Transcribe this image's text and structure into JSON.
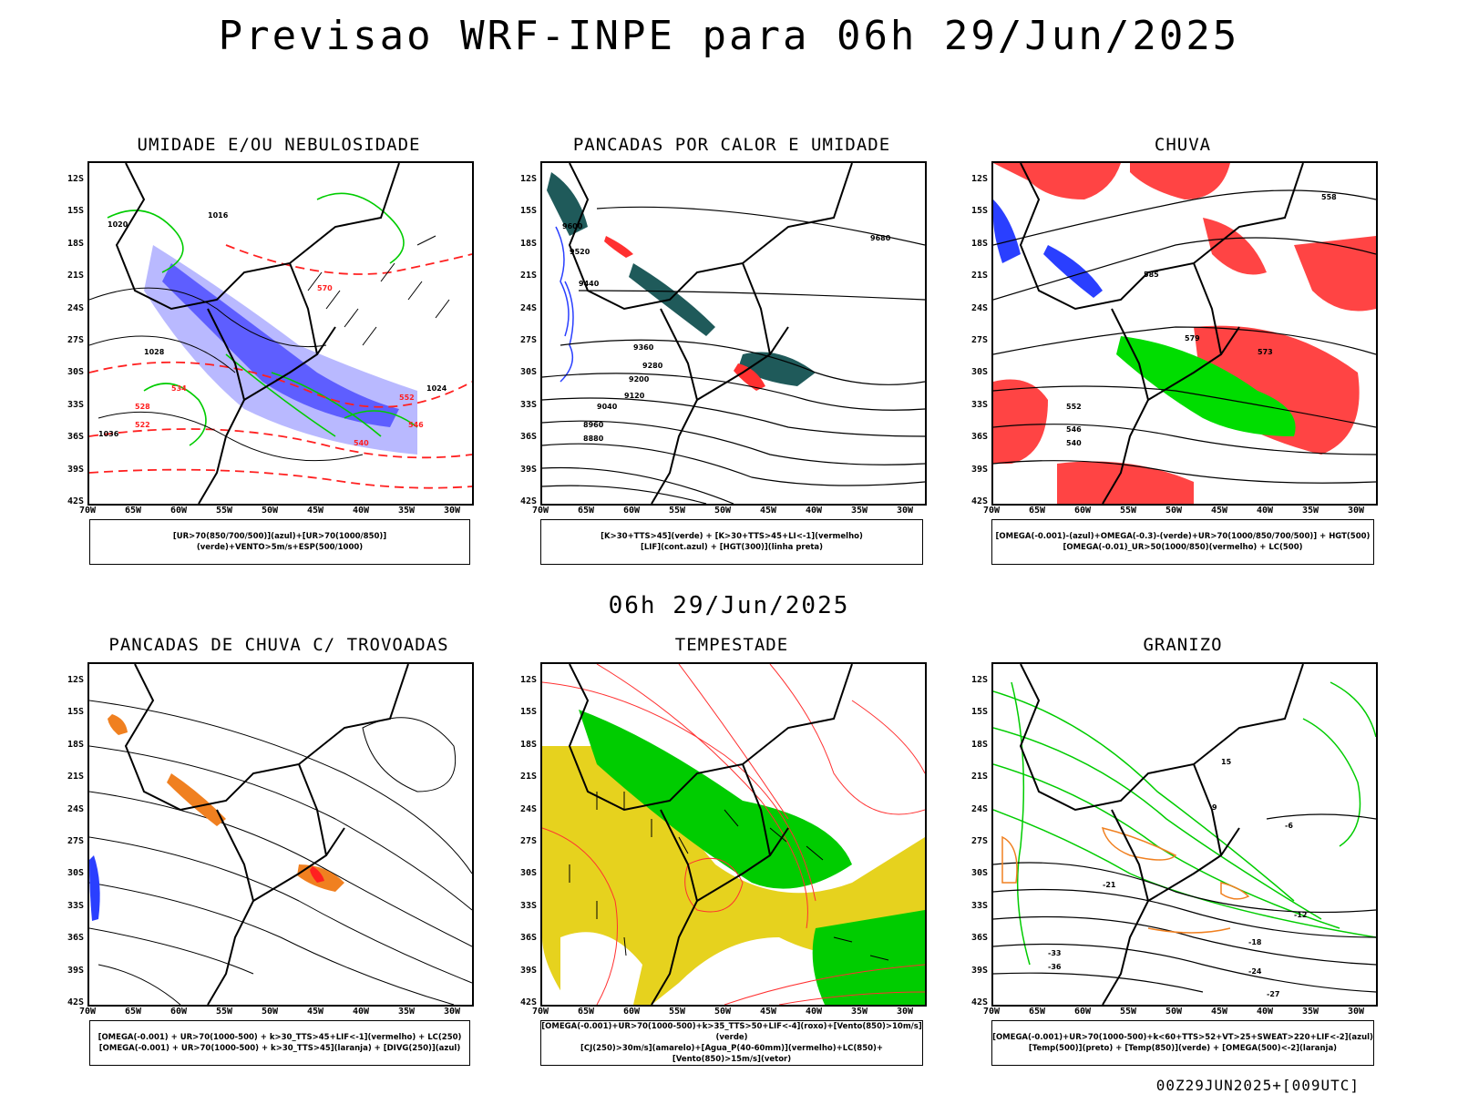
{
  "title": "Previsao WRF-INPE  para 06h 29/Jun/2025",
  "mid_title": "06h 29/Jun/2025",
  "footer": "00Z29JUN2025+[009UTC]",
  "lat_labels": [
    "12S",
    "15S",
    "18S",
    "21S",
    "24S",
    "27S",
    "30S",
    "33S",
    "36S",
    "39S",
    "42S"
  ],
  "lon_labels": [
    "70W",
    "65W",
    "60W",
    "55W",
    "50W",
    "45W",
    "40W",
    "35W",
    "30W"
  ],
  "colors": {
    "blue": "#2a3fff",
    "green": "#00cc00",
    "red": "#ff2020",
    "orange": "#f08020",
    "yellow": "#e6d21e",
    "teal": "#1f5a5a",
    "lavender": "#a8a8ff"
  },
  "panels": [
    {
      "id": "umidade",
      "title": "UMIDADE E/OU NEBULOSIDADE",
      "legend": [
        "[UR>70(850/700/500)](azul)+[UR>70(1000/850)](verde)+VENTO>5m/s+ESP(500/1000)"
      ]
    },
    {
      "id": "pancadas-calor",
      "title": "PANCADAS POR CALOR E UMIDADE",
      "legend": [
        "[K>30+TTS>45](verde) + [K>30+TTS>45+LI<-1](vermelho)",
        "[LIF](cont.azul) + [HGT(300)](linha preta)"
      ]
    },
    {
      "id": "chuva",
      "title": "CHUVA",
      "legend": [
        "[OMEGA(-0.001)-(azul)+OMEGA(-0.3)-(verde)+UR>70(1000/850/700/500)] + HGT(500)",
        "[OMEGA(-0.01)_UR>50(1000/850)(vermelho) + LC(500)"
      ]
    },
    {
      "id": "trovoadas",
      "title": "PANCADAS DE CHUVA C/ TROVOADAS",
      "legend": [
        "[OMEGA(-0.001) + UR>70(1000-500) + k>30_TTS>45+LIF<-1](vermelho) + LC(250)",
        "[OMEGA(-0.001) + UR>70(1000-500) + k>30_TTS>45](laranja) + [DIVG(250)](azul)"
      ]
    },
    {
      "id": "tempestade",
      "title": "TEMPESTADE",
      "legend": [
        "[OMEGA(-0.001)+UR>70(1000-500)+k>35_TTS>50+LIF<-4](roxo)+[Vento(850)>10m/s](verde)",
        "[CJ(250)>30m/s](amarelo)+[Agua_P(40-60mm)](vermelho)+LC(850)+[Vento(850)>15m/s](vetor)"
      ]
    },
    {
      "id": "granizo",
      "title": "GRANIZO",
      "legend": [
        "[OMEGA(-0.001)+UR>70(1000-500)+k<60+TTS>52+VT>25+SWEAT>220+LIF<-2](azul)",
        "[Temp(500)](preto) + [Temp(850)](verde) + [OMEGA(500)<-2](laranja)"
      ]
    }
  ],
  "contour_labels": {
    "umidade": [
      "1016",
      "1020",
      "1024",
      "1028",
      "1036",
      "534",
      "540",
      "546",
      "552",
      "570",
      "528",
      "522"
    ],
    "pancadas-calor": [
      "9600",
      "9520",
      "9440",
      "9360",
      "9280",
      "9200",
      "9120",
      "9040",
      "8960",
      "8880",
      "9680"
    ],
    "chuva": [
      "585",
      "579",
      "573",
      "552",
      "546",
      "540",
      "558"
    ],
    "granizo": [
      "-6",
      "-12",
      "-18",
      "-24",
      "-27",
      "-33",
      "-36",
      "-21",
      "9",
      "15"
    ]
  }
}
